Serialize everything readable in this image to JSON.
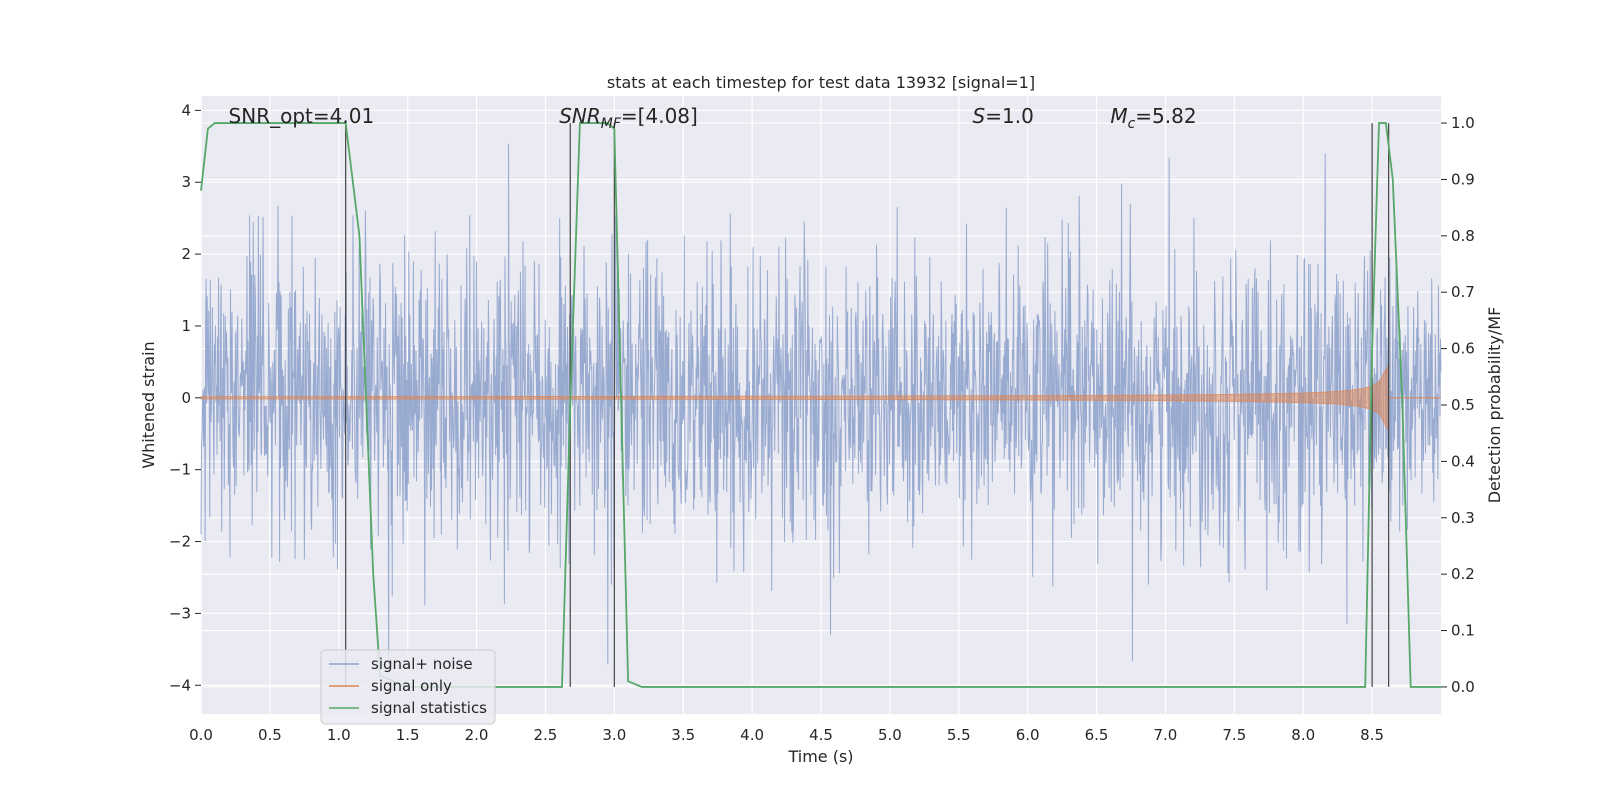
{
  "chart_data": {
    "type": "line",
    "title": "stats at each timestep for test data 13932 [signal=1]",
    "xlabel": "Time (s)",
    "ylabel": "Whitened strain",
    "ylabel_right": "Detection probability/MF",
    "xlim": [
      0.0,
      9.0
    ],
    "ylim": [
      -4.4,
      4.2
    ],
    "ylim_right": [
      -0.048,
      1.048
    ],
    "xticks": [
      0.0,
      0.5,
      1.0,
      1.5,
      2.0,
      2.5,
      3.0,
      3.5,
      4.0,
      4.5,
      5.0,
      5.5,
      6.0,
      6.5,
      7.0,
      7.5,
      8.0,
      8.5
    ],
    "xtick_labels": [
      "0.0",
      "0.5",
      "1.0",
      "1.5",
      "2.0",
      "2.5",
      "3.0",
      "3.5",
      "4.0",
      "4.5",
      "5.0",
      "5.5",
      "6.0",
      "6.5",
      "7.0",
      "7.5",
      "8.0",
      "8.5"
    ],
    "yticks": [
      -4,
      -3,
      -2,
      -1,
      0,
      1,
      2,
      3,
      4
    ],
    "ytick_labels": [
      "−4",
      "−3",
      "−2",
      "−1",
      "0",
      "1",
      "2",
      "3",
      "4"
    ],
    "yticks_right": [
      0.0,
      0.1,
      0.2,
      0.3,
      0.4,
      0.5,
      0.6,
      0.7,
      0.8,
      0.9,
      1.0
    ],
    "ytick_labels_right": [
      "0.0",
      "0.1",
      "0.2",
      "0.3",
      "0.4",
      "0.5",
      "0.6",
      "0.7",
      "0.8",
      "0.9",
      "1.0"
    ],
    "grid": true,
    "legend_placement": "lower-left",
    "annotations": [
      {
        "text": "SNR_opt=4.01",
        "x": 0.2
      },
      {
        "text": "SNR_MF=[4.08]",
        "x": 2.6
      },
      {
        "text": "S=1.0",
        "x": 5.6
      },
      {
        "text": "M_c=5.82",
        "x": 6.6
      }
    ],
    "series": [
      {
        "name": "signal+ noise",
        "color": "#8fa3cc",
        "noise_std": 1.0,
        "peak_max": 3.85,
        "peak_min": -3.95
      },
      {
        "name": "signal only",
        "color": "#dd8452",
        "chirp_end": 8.62,
        "max_amplitude": 0.45
      },
      {
        "name": "signal statistics",
        "color": "#55a868",
        "axis": "right",
        "x": [
          0.0,
          0.05,
          0.1,
          0.2,
          0.3,
          0.5,
          0.7,
          0.9,
          1.0,
          1.05,
          1.15,
          1.2,
          1.25,
          1.3,
          1.5,
          2.0,
          2.5,
          2.62,
          2.68,
          2.75,
          2.8,
          2.95,
          3.0,
          3.05,
          3.1,
          3.2,
          4.0,
          5.0,
          6.0,
          7.0,
          7.1,
          8.0,
          8.45,
          8.5,
          8.55,
          8.6,
          8.65,
          8.72,
          8.78,
          8.85,
          9.0
        ],
        "y": [
          0.88,
          0.99,
          1.0,
          1.0,
          1.0,
          1.0,
          1.0,
          1.0,
          1.0,
          1.0,
          0.8,
          0.5,
          0.2,
          0.02,
          0.0,
          0.0,
          0.0,
          0.0,
          0.5,
          1.0,
          1.0,
          1.0,
          0.99,
          0.5,
          0.01,
          0.0,
          0.0,
          0.0,
          0.0,
          0.0,
          0.0,
          0.0,
          0.0,
          0.6,
          1.0,
          1.0,
          0.9,
          0.5,
          0.0,
          0.0,
          0.0
        ]
      }
    ],
    "vertical_markers": [
      1.05,
      2.68,
      3.0,
      8.5,
      8.62
    ]
  }
}
